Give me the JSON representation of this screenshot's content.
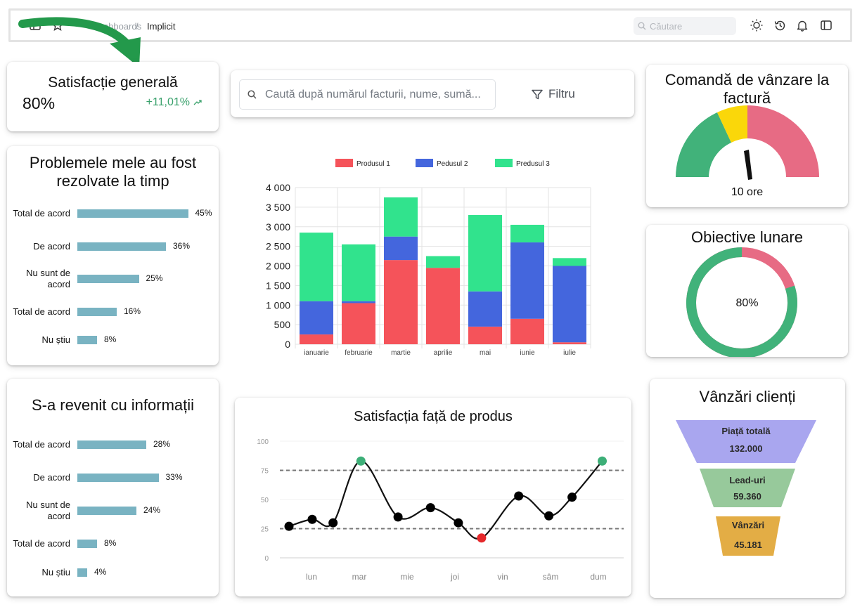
{
  "topbar": {
    "breadcrumb": [
      "Dashboards",
      "Implicit"
    ],
    "search_placeholder": "Căutare"
  },
  "kpi": {
    "title": "Satisfacție generală",
    "value": "80%",
    "delta": "+11,01%"
  },
  "problems": {
    "title": "Problemele mele au fost rezolvate la timp",
    "rows": [
      {
        "label": "Total de acord",
        "pct": "45%",
        "value": 45
      },
      {
        "label": "De acord",
        "pct": "36%",
        "value": 36
      },
      {
        "label": "Nu sunt de acord",
        "pct": "25%",
        "value": 25
      },
      {
        "label": "Total de acord",
        "pct": "16%",
        "value": 16
      },
      {
        "label": "Nu știu",
        "pct": "8%",
        "value": 8
      }
    ]
  },
  "followup": {
    "title": "S-a revenit cu informații",
    "rows": [
      {
        "label": "Total de acord",
        "pct": "28%",
        "value": 28
      },
      {
        "label": "De acord",
        "pct": "33%",
        "value": 33
      },
      {
        "label": "Nu sunt de acord",
        "pct": "24%",
        "value": 24
      },
      {
        "label": "Total de acord",
        "pct": "8%",
        "value": 8
      },
      {
        "label": "Nu știu",
        "pct": "4%",
        "value": 4
      }
    ]
  },
  "filterbar": {
    "placeholder": "Caută după numărul facturii, nume, sumă...",
    "filter_label": "Filtru"
  },
  "chart_data": [
    {
      "type": "bar",
      "stacked": true,
      "categories": [
        "ianuarie",
        "februarie",
        "martie",
        "aprilie",
        "mai",
        "iunie",
        "iulie"
      ],
      "series": [
        {
          "name": "Produsul 1",
          "color": "#f5535a",
          "values": [
            250,
            1050,
            2150,
            1950,
            450,
            650,
            50
          ]
        },
        {
          "name": "Pedusul 2",
          "color": "#4466dd",
          "values": [
            850,
            50,
            600,
            0,
            900,
            1950,
            1950
          ]
        },
        {
          "name": "Predusul 3",
          "color": "#31e38d",
          "values": [
            1750,
            1450,
            1000,
            300,
            1950,
            450,
            200
          ]
        }
      ],
      "y_ticks": [
        "4 000",
        "3 500",
        "3 000",
        "2 500",
        "2 000",
        "1 500",
        "1 000",
        "500",
        "0"
      ],
      "ylim": [
        0,
        4000
      ],
      "legend": "top",
      "grid": true
    },
    {
      "type": "line",
      "title": "Satisfacția față de produs",
      "x_ticks": [
        "lun",
        "mar",
        "mie",
        "joi",
        "vin",
        "sâm",
        "dum"
      ],
      "y_ticks": [
        "100",
        "75",
        "50",
        "25",
        "0"
      ],
      "ylim": [
        0,
        100
      ],
      "points": [
        {
          "x": 0.0,
          "y": 27
        },
        {
          "x": 0.5,
          "y": 33
        },
        {
          "x": 0.95,
          "y": 30
        },
        {
          "x": 1.55,
          "y": 83,
          "color": "#3daf78"
        },
        {
          "x": 2.35,
          "y": 35
        },
        {
          "x": 3.05,
          "y": 43
        },
        {
          "x": 3.65,
          "y": 30
        },
        {
          "x": 4.15,
          "y": 17,
          "color": "#e5282b"
        },
        {
          "x": 4.95,
          "y": 53
        },
        {
          "x": 5.6,
          "y": 36
        },
        {
          "x": 6.1,
          "y": 52
        },
        {
          "x": 6.75,
          "y": 83,
          "color": "#3daf78"
        }
      ],
      "thresholds": [
        75,
        25
      ]
    }
  ],
  "gauge": {
    "title": "Comandă de vânzare la factură",
    "value": "10 ore",
    "needle_value": 0.43
  },
  "donut": {
    "title": "Obiective lunare",
    "value": "80%",
    "fraction": 0.8
  },
  "funnel": {
    "title": "Vânzări clienți",
    "stages": [
      {
        "label": "Piață totală",
        "value": "132.000",
        "color": "#a9a6ef"
      },
      {
        "label": "Lead-uri",
        "value": "59.360",
        "color": "#97c99b"
      },
      {
        "label": "Vânzări",
        "value": "45.181",
        "color": "#e3ad45"
      }
    ]
  },
  "colors": {
    "bar_list": "#79b3c2",
    "positive": "#3aa16c",
    "gauge_green": "#41b27a",
    "gauge_yellow": "#fad70a",
    "gauge_red": "#e76b84",
    "arrow": "#23994b"
  }
}
